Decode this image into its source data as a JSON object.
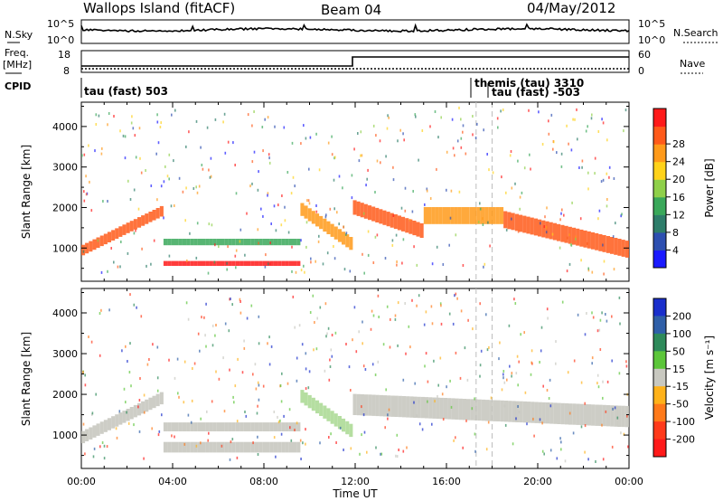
{
  "header": {
    "station": "Wallops Island (fitACF)",
    "beam": "Beam 04",
    "date": "04/May/2012"
  },
  "strips": {
    "nsky_label": "N.Sky",
    "nsearch_label": "N.Search",
    "freq_label_1": "Freq.",
    "freq_label_2": "[MHz]",
    "nave_label": "Nave",
    "cpid_label": "CPID",
    "nsky_ticks": [
      "10^5",
      "10^0"
    ],
    "nsearch_ticks": [
      "10^5",
      "10^0"
    ],
    "freq_ticks": [
      "18",
      "8"
    ],
    "nave_ticks": [
      "60",
      "0"
    ],
    "cpid_entries": [
      "tau (fast) 503",
      "themis (tau) 3310",
      "tau (fast) -503"
    ]
  },
  "chart_data": [
    {
      "type": "heatmap",
      "name": "power-panel",
      "xlabel": "",
      "ylabel": "Slant Range [km]",
      "x_ticks": [
        "00:00",
        "04:00",
        "08:00",
        "12:00",
        "16:00",
        "20:00",
        "00:00"
      ],
      "y_ticks": [
        "1000",
        "2000",
        "3000",
        "4000"
      ],
      "xlim_hours": [
        0,
        24
      ],
      "ylim_km": [
        180,
        4600
      ],
      "colorbar": {
        "label": "Power [dB]",
        "ticks": [
          "4",
          "8",
          "12",
          "16",
          "20",
          "24",
          "28"
        ],
        "colors": [
          "#1a1aff",
          "#2d4fb0",
          "#2e7d6a",
          "#3aa85a",
          "#8fd04a",
          "#ffd21a",
          "#ff9a1a",
          "#ff5a1a",
          "#ff1a1a"
        ]
      },
      "echo_bands": [
        {
          "from_h": 0.0,
          "to_h": 3.6,
          "start_km": 950,
          "end_km": 1950,
          "width_km": 260,
          "color": "#ff5a1a"
        },
        {
          "from_h": 3.6,
          "to_h": 9.6,
          "start_km": 620,
          "end_km": 620,
          "width_km": 120,
          "color": "#ff1a1a"
        },
        {
          "from_h": 3.6,
          "to_h": 9.6,
          "start_km": 1150,
          "end_km": 1150,
          "width_km": 160,
          "color": "#3aa85a"
        },
        {
          "from_h": 9.6,
          "to_h": 11.9,
          "start_km": 1950,
          "end_km": 1050,
          "width_km": 320,
          "color": "#ff9a1a"
        },
        {
          "from_h": 11.9,
          "to_h": 15.0,
          "start_km": 2000,
          "end_km": 1400,
          "width_km": 360,
          "color": "#ff5a1a"
        },
        {
          "from_h": 15.0,
          "to_h": 18.5,
          "start_km": 1800,
          "end_km": 1800,
          "width_km": 420,
          "color": "#ff9a1a"
        },
        {
          "from_h": 18.5,
          "to_h": 24.0,
          "start_km": 1700,
          "end_km": 950,
          "width_km": 420,
          "color": "#ff5a1a"
        }
      ]
    },
    {
      "type": "heatmap",
      "name": "velocity-panel",
      "xlabel": "Time UT",
      "ylabel": "Slant Range [km]",
      "x_ticks": [
        "00:00",
        "04:00",
        "08:00",
        "12:00",
        "16:00",
        "20:00",
        "00:00"
      ],
      "y_ticks": [
        "1000",
        "2000",
        "3000",
        "4000"
      ],
      "xlim_hours": [
        0,
        24
      ],
      "ylim_km": [
        180,
        4600
      ],
      "colorbar": {
        "label": "Velocity [m s⁻¹]",
        "ticks": [
          "200",
          "100",
          "50",
          "15",
          "-15",
          "-50",
          "-100",
          "-200"
        ],
        "colors": [
          "#1a2fcc",
          "#2f5fa8",
          "#2e8a5a",
          "#5cc63a",
          "#c8c8c0",
          "#ffb21a",
          "#ff7a1a",
          "#ff3a1a",
          "#ff1a1a"
        ]
      },
      "echo_bands": [
        {
          "from_h": 0.0,
          "to_h": 3.6,
          "start_km": 950,
          "end_km": 1950,
          "width_km": 300,
          "color": "#c4c4bc"
        },
        {
          "from_h": 3.6,
          "to_h": 9.6,
          "start_km": 700,
          "end_km": 700,
          "width_km": 260,
          "color": "#c4c4bc"
        },
        {
          "from_h": 3.6,
          "to_h": 9.6,
          "start_km": 1200,
          "end_km": 1200,
          "width_km": 220,
          "color": "#c4c4bc"
        },
        {
          "from_h": 9.6,
          "to_h": 11.9,
          "start_km": 1950,
          "end_km": 1050,
          "width_km": 320,
          "color": "#a8d890"
        },
        {
          "from_h": 11.9,
          "to_h": 24.0,
          "start_km": 1750,
          "end_km": 1450,
          "width_km": 520,
          "color": "#c4c4bc"
        }
      ]
    }
  ]
}
